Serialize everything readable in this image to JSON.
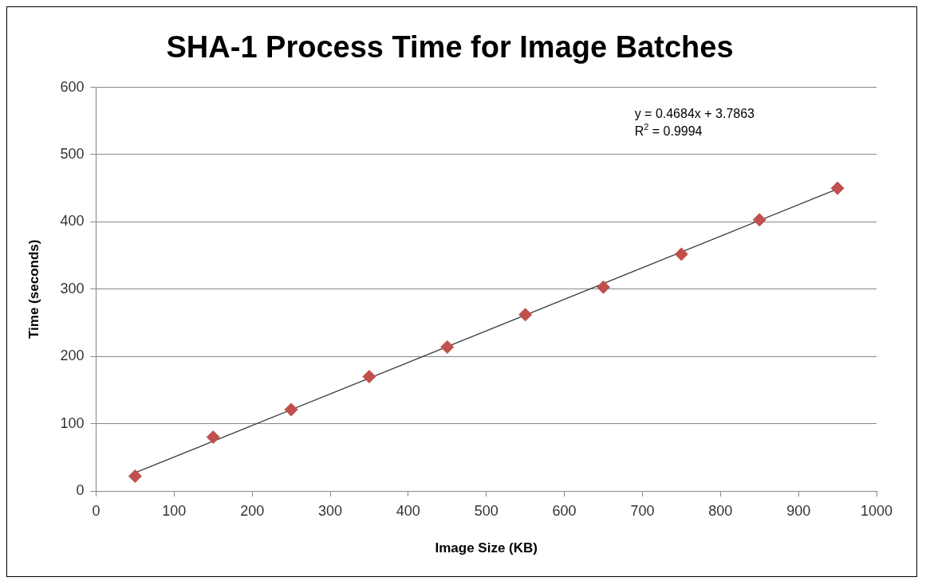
{
  "chart_data": {
    "type": "scatter",
    "title": "SHA-1 Process Time for Image Batches",
    "xlabel": "Image Size (KB)",
    "ylabel": "Time (seconds)",
    "xlim": [
      0,
      1000
    ],
    "xticks": [
      0,
      100,
      200,
      300,
      400,
      500,
      600,
      700,
      800,
      900,
      1000
    ],
    "ylim": [
      0,
      600
    ],
    "yticks": [
      0,
      100,
      200,
      300,
      400,
      500,
      600
    ],
    "grid": "y",
    "legend": false,
    "annotations": [
      "y = 0.4684x + 3.7863",
      "R$^{2}$ = 0.9994"
    ],
    "series": [
      {
        "type": "scatter",
        "marker": "diamond",
        "color": "#c0504d",
        "x": [
          50,
          150,
          250,
          350,
          450,
          550,
          650,
          750,
          850,
          950
        ],
        "values": [
          22,
          80,
          121,
          170,
          214,
          262,
          303,
          352,
          403,
          450
        ]
      },
      {
        "type": "line",
        "color": "#404040",
        "x": [
          50,
          950
        ],
        "values": [
          27,
          449
        ],
        "marker": "none"
      }
    ]
  }
}
